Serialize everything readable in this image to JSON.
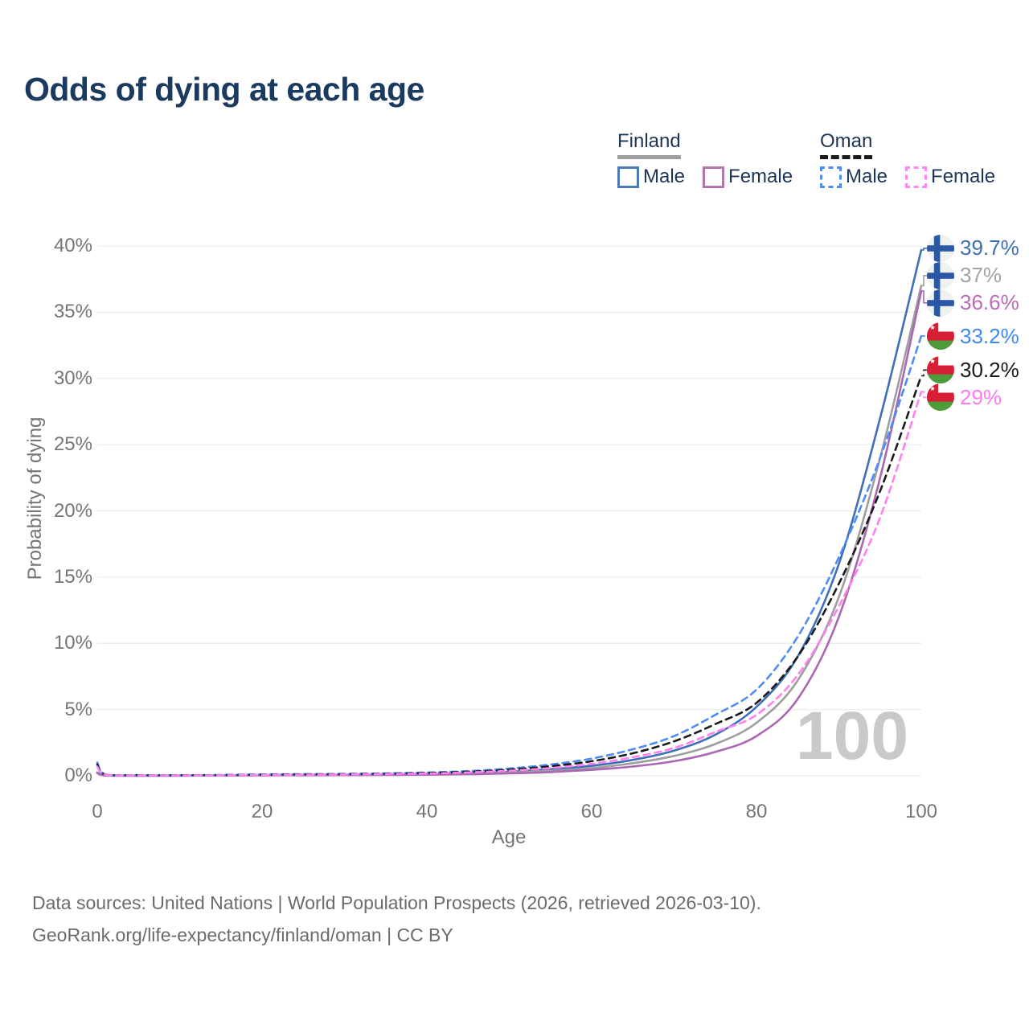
{
  "title": "Odds of dying at each age",
  "legend": {
    "groups": [
      {
        "country": "Finland",
        "line_style": "solid",
        "line_color": "#9e9e9e",
        "items": [
          {
            "label": "Male",
            "color": "#4a7ab8"
          },
          {
            "label": "Female",
            "color": "#b276ad"
          }
        ]
      },
      {
        "country": "Oman",
        "line_style": "dashed",
        "line_color": "#1a1a1a",
        "items": [
          {
            "label": "Male",
            "color": "#4d8bf5"
          },
          {
            "label": "Female",
            "color": "#ff85f3"
          }
        ]
      }
    ]
  },
  "chart_data": {
    "type": "line",
    "title": "Odds of dying at each age",
    "xlabel": "Age",
    "ylabel": "Probability of dying",
    "xlim": [
      0,
      100
    ],
    "ylim": [
      0,
      40
    ],
    "x_ticks": [
      0,
      20,
      40,
      60,
      80,
      100
    ],
    "y_ticks": [
      "0%",
      "5%",
      "10%",
      "15%",
      "20%",
      "25%",
      "30%",
      "35%",
      "40%"
    ],
    "grid": "horizontal",
    "legend_position": "top-right",
    "watermark": "100",
    "x": [
      0,
      1,
      5,
      10,
      15,
      20,
      25,
      30,
      35,
      40,
      45,
      50,
      55,
      60,
      65,
      70,
      75,
      80,
      85,
      90,
      95,
      100
    ],
    "series": [
      {
        "name": "Finland Male",
        "color": "#3e6fb7",
        "dash": "solid",
        "flag": "finland",
        "end_label": "39.7%",
        "label_color": "#3d6eb5",
        "values": [
          0.25,
          0.03,
          0.01,
          0.015,
          0.03,
          0.06,
          0.07,
          0.08,
          0.1,
          0.14,
          0.2,
          0.3,
          0.5,
          0.75,
          1.2,
          1.9,
          3.1,
          5.2,
          9.0,
          16.0,
          27.0,
          39.7
        ]
      },
      {
        "name": "Finland",
        "color": "#9e9e9e",
        "dash": "solid",
        "flag": "finland",
        "end_label": "37%",
        "label_color": "#a3a3a3",
        "values": [
          0.22,
          0.025,
          0.01,
          0.012,
          0.025,
          0.045,
          0.055,
          0.06,
          0.08,
          0.11,
          0.16,
          0.24,
          0.38,
          0.58,
          0.95,
          1.5,
          2.4,
          4.0,
          7.2,
          13.5,
          24.0,
          37.0
        ]
      },
      {
        "name": "Finland Female",
        "color": "#a867b0",
        "dash": "solid",
        "flag": "finland",
        "end_label": "36.6%",
        "label_color": "#b96bb9",
        "values": [
          0.2,
          0.02,
          0.008,
          0.01,
          0.02,
          0.03,
          0.04,
          0.05,
          0.06,
          0.08,
          0.12,
          0.18,
          0.28,
          0.45,
          0.7,
          1.1,
          1.8,
          3.0,
          5.8,
          12.0,
          22.5,
          36.6
        ]
      },
      {
        "name": "Oman Male",
        "color": "#4d8bf5",
        "dash": "dashed",
        "flag": "oman",
        "end_label": "33.2%",
        "label_color": "#3f88f5",
        "values": [
          1.0,
          0.09,
          0.045,
          0.04,
          0.06,
          0.1,
          0.12,
          0.14,
          0.18,
          0.25,
          0.35,
          0.55,
          0.85,
          1.3,
          2.0,
          3.0,
          4.6,
          6.5,
          10.5,
          16.5,
          24.0,
          33.2
        ]
      },
      {
        "name": "Oman",
        "color": "#1a1a1a",
        "dash": "dashed",
        "flag": "oman",
        "end_label": "30.2%",
        "label_color": "#1a1a1a",
        "values": [
          0.85,
          0.08,
          0.04,
          0.035,
          0.05,
          0.08,
          0.1,
          0.12,
          0.15,
          0.21,
          0.3,
          0.46,
          0.72,
          1.1,
          1.7,
          2.6,
          3.9,
          5.5,
          9.0,
          14.5,
          21.5,
          30.2
        ]
      },
      {
        "name": "Oman Female",
        "color": "#ff80f0",
        "dash": "dashed",
        "flag": "oman",
        "end_label": "29%",
        "label_color": "#ff7aeb",
        "values": [
          0.7,
          0.07,
          0.035,
          0.03,
          0.045,
          0.065,
          0.08,
          0.1,
          0.13,
          0.17,
          0.25,
          0.38,
          0.58,
          0.9,
          1.4,
          2.1,
          3.3,
          4.6,
          7.6,
          12.8,
          19.5,
          29.0
        ]
      }
    ]
  },
  "footer": {
    "line1": "Data sources: United Nations | World Population Prospects (2026, retrieved 2026-03-10).",
    "line2": "GeoRank.org/life-expectancy/finland/oman | CC BY"
  }
}
